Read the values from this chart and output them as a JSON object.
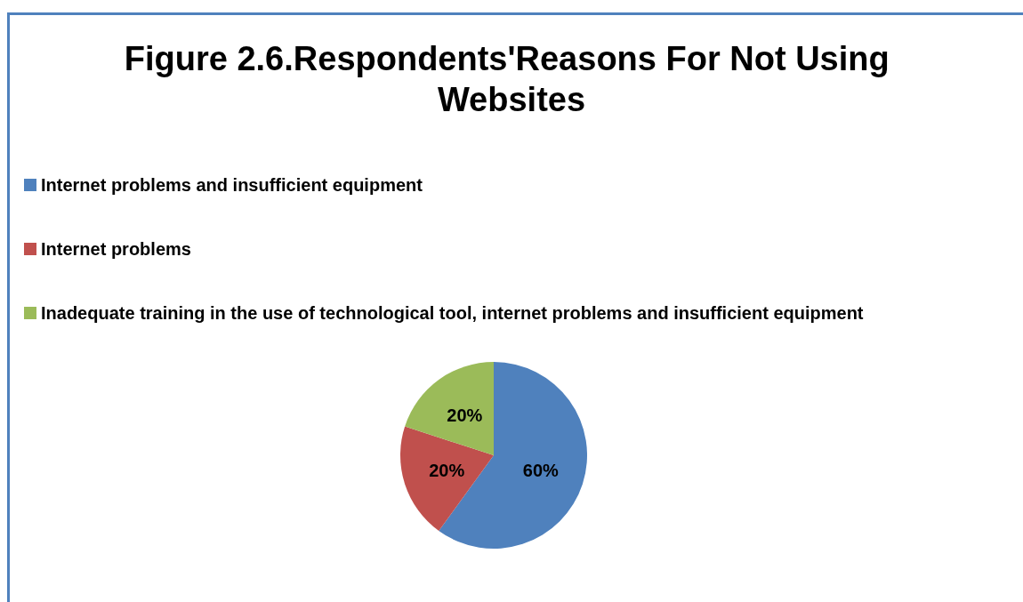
{
  "chart_data": {
    "type": "pie",
    "title": "Figure 2.6.Respondents'Reasons For Not Using Websites",
    "categories": [
      "Internet problems and insufficient equipment",
      "Internet problems",
      "Inadequate training in the use of technological tool, internet problems and insufficient equipment"
    ],
    "values": [
      60,
      20,
      20
    ],
    "colors": [
      "#4f81bd",
      "#c0504d",
      "#9bbb59"
    ],
    "value_labels": [
      "60%",
      "20%",
      "20%"
    ],
    "legend": "top left"
  }
}
